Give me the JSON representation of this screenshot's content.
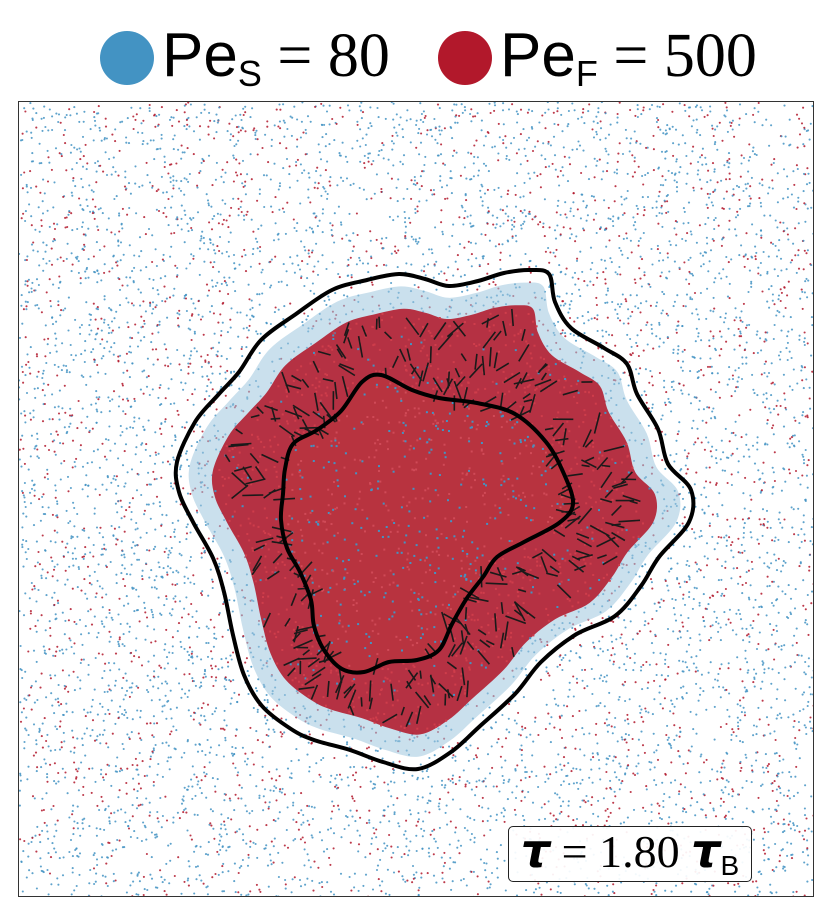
{
  "legend": {
    "slow": {
      "prefix": "Pe",
      "subscript": "S",
      "relation": " = ",
      "value": "80",
      "color": "#4393c3"
    },
    "fast": {
      "prefix": "Pe",
      "subscript": "F",
      "relation": " = ",
      "value": "500",
      "color": "#b2182b"
    }
  },
  "time_label": {
    "symbol": "τ",
    "relation": " = ",
    "value": "1.80",
    "unit_symbol": "τ",
    "unit_subscript": "B"
  },
  "colors": {
    "slow_particle": "#4393c3",
    "fast_particle": "#b2182b",
    "interface": "#000000",
    "frame": "#333333"
  }
}
